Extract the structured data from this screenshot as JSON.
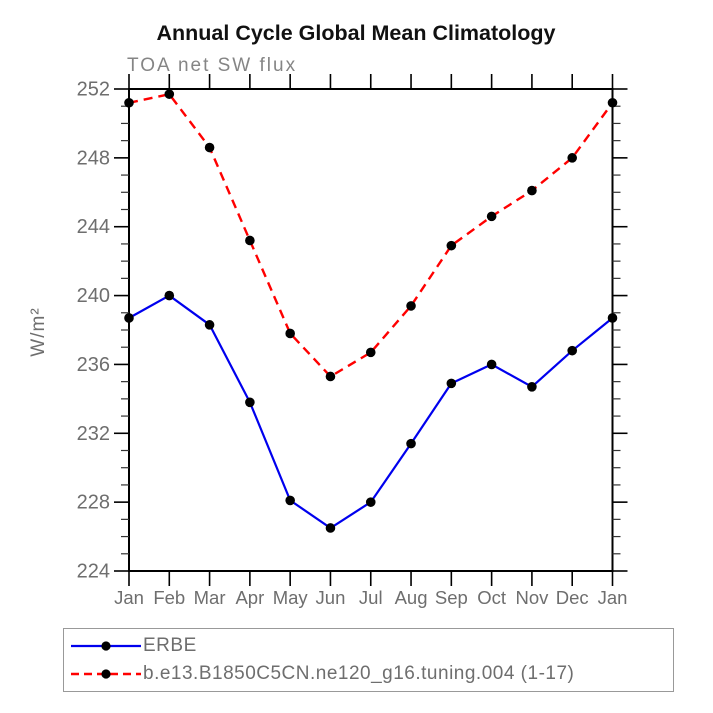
{
  "title": "Annual Cycle Global Mean Climatology",
  "chart_data": {
    "type": "line",
    "title": "Annual Cycle Global Mean Climatology",
    "subtitle": "TOA net SW flux",
    "ylabel": "W/m²",
    "xlabel": "",
    "categories": [
      "Jan",
      "Feb",
      "Mar",
      "Apr",
      "May",
      "Jun",
      "Jul",
      "Aug",
      "Sep",
      "Oct",
      "Nov",
      "Dec",
      "Jan"
    ],
    "ylim": [
      224,
      252
    ],
    "y_major_ticks": [
      224,
      228,
      232,
      236,
      240,
      244,
      248,
      252
    ],
    "y_minor_step": 1,
    "grid": false,
    "legend_position": "bottom",
    "marker": "filled-circle",
    "marker_color": "#000000",
    "axis_color": "#000000",
    "label_color": "#6e6e6e",
    "series": [
      {
        "name": "ERBE",
        "color": "#0000ee",
        "style": "solid",
        "values": [
          238.7,
          240.0,
          238.3,
          233.8,
          228.1,
          226.5,
          228.0,
          231.4,
          234.9,
          236.0,
          234.7,
          236.8,
          238.7
        ]
      },
      {
        "name": "b.e13.B1850C5CN.ne120_g16.tuning.004 (1-17)",
        "color": "#ff0000",
        "style": "dashed",
        "values": [
          251.2,
          251.7,
          248.6,
          243.2,
          237.8,
          235.3,
          236.7,
          239.4,
          242.9,
          244.6,
          246.1,
          248.0,
          251.2
        ]
      }
    ]
  }
}
